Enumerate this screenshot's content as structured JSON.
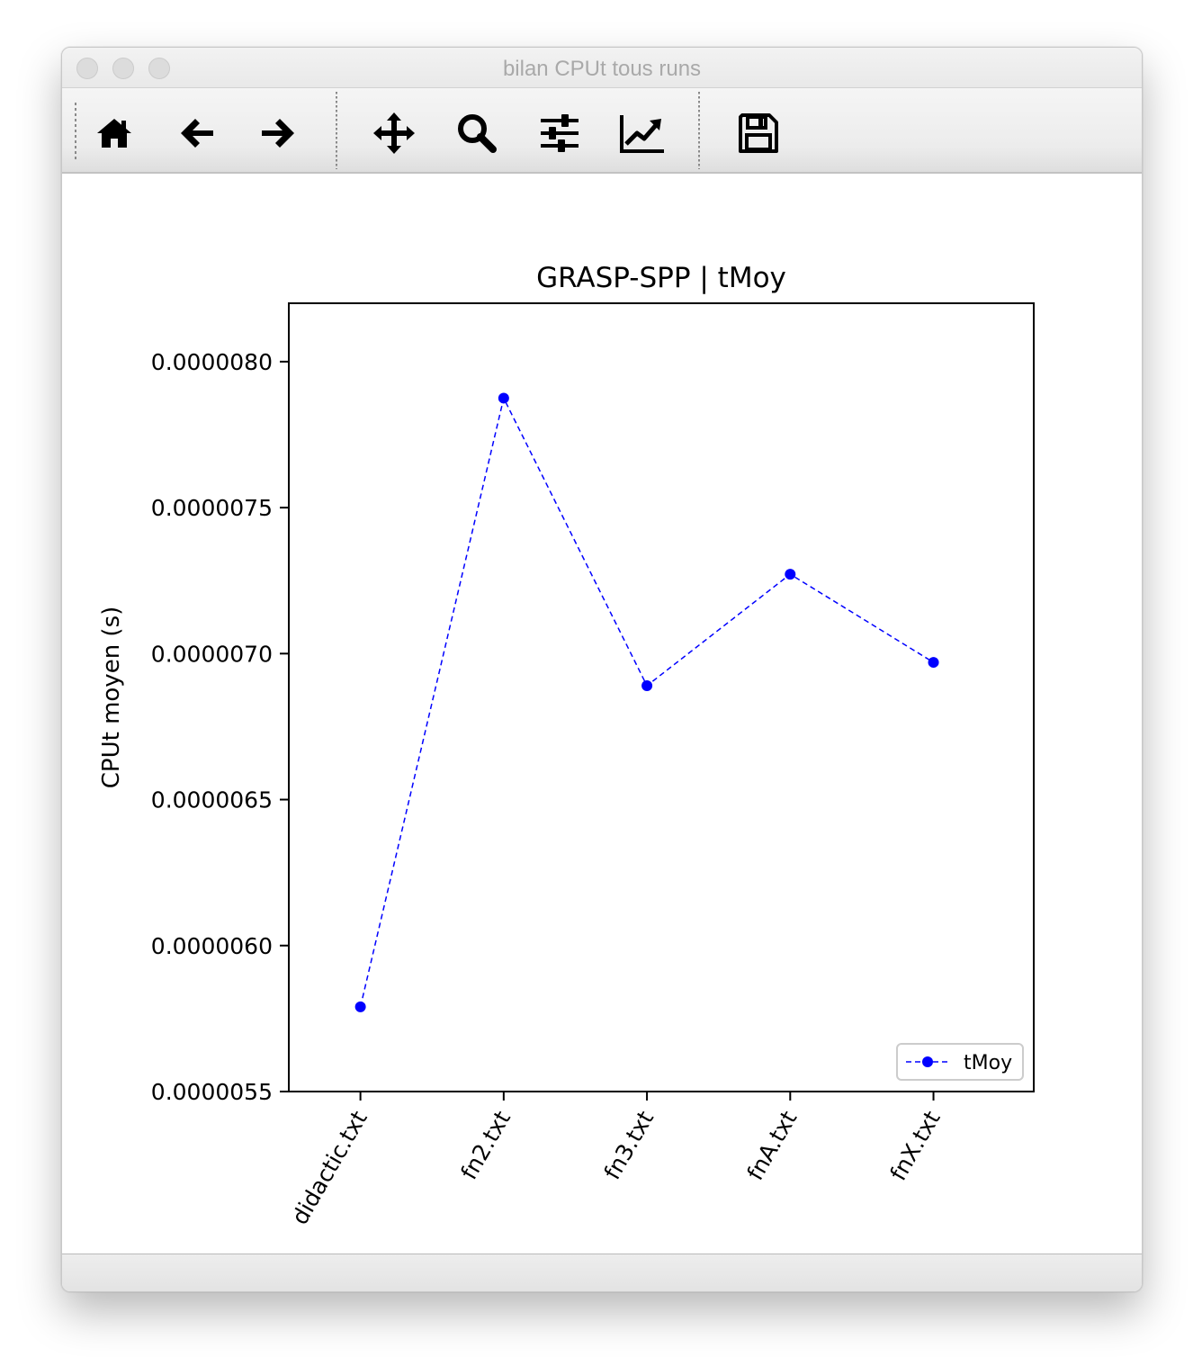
{
  "window": {
    "title": "bilan CPUt tous runs"
  },
  "toolbar": {
    "buttons": [
      {
        "name": "home-button",
        "icon": "home-icon"
      },
      {
        "name": "back-button",
        "icon": "arrow-left-icon"
      },
      {
        "name": "forward-button",
        "icon": "arrow-right-icon"
      },
      {
        "name": "pan-button",
        "icon": "move-icon"
      },
      {
        "name": "zoom-button",
        "icon": "search-icon"
      },
      {
        "name": "configure-subplots-button",
        "icon": "sliders-icon"
      },
      {
        "name": "edit-axis-button",
        "icon": "line-chart-icon"
      },
      {
        "name": "save-button",
        "icon": "floppy-disk-icon"
      }
    ]
  },
  "colors": {
    "series": "#0000ff",
    "axes": "#000000"
  },
  "chart_data": {
    "type": "line",
    "title": "GRASP-SPP | tMoy",
    "xlabel": "",
    "ylabel": "CPUt moyen (s)",
    "categories": [
      "didactic.txt",
      "fn2.txt",
      "fn3.txt",
      "fnA.txt",
      "fnX.txt"
    ],
    "series": [
      {
        "name": "tMoy",
        "values": [
          5.79e-06,
          7.875e-06,
          6.89e-06,
          7.272e-06,
          6.97e-06
        ],
        "color": "#0000ff",
        "linestyle": "dashed",
        "marker": "circle"
      }
    ],
    "ylim": [
      5.5e-06,
      8.2e-06
    ],
    "yticks": [
      "0.0000055",
      "0.0000060",
      "0.0000065",
      "0.0000070",
      "0.0000075",
      "0.0000080"
    ],
    "ytick_values": [
      5.5e-06,
      6e-06,
      6.5e-06,
      7e-06,
      7.5e-06,
      8e-06
    ],
    "xtick_rotation": "60deg",
    "grid": false,
    "legend": {
      "position": "lower right",
      "entries": [
        "tMoy"
      ]
    }
  }
}
